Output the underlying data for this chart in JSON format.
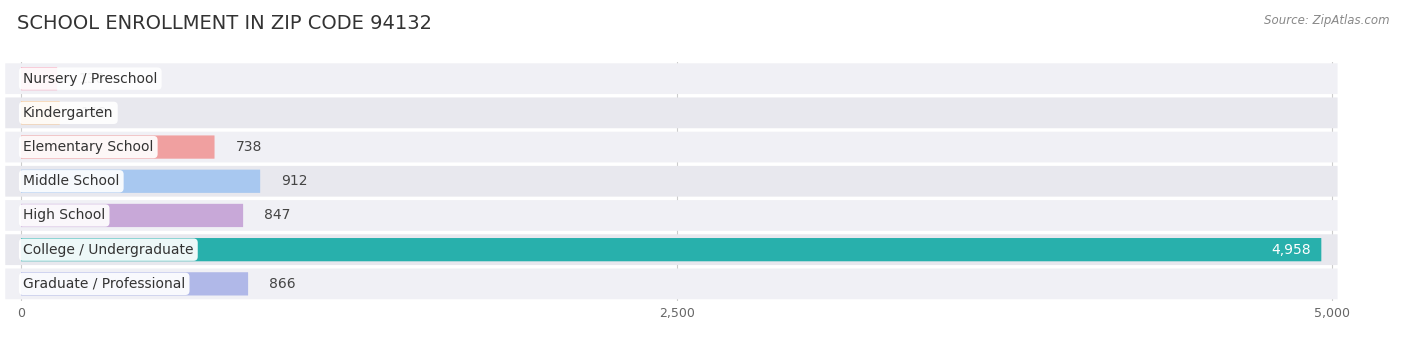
{
  "title": "SCHOOL ENROLLMENT IN ZIP CODE 94132",
  "source": "Source: ZipAtlas.com",
  "categories": [
    "Nursery / Preschool",
    "Kindergarten",
    "Elementary School",
    "Middle School",
    "High School",
    "College / Undergraduate",
    "Graduate / Professional"
  ],
  "values": [
    138,
    148,
    738,
    912,
    847,
    4958,
    866
  ],
  "bar_colors": [
    "#f4a0b8",
    "#f9c890",
    "#f0a0a0",
    "#a8c8f0",
    "#c8a8d8",
    "#28b0ac",
    "#b0b8e8"
  ],
  "bar_bg_color": "#e8e8ee",
  "xlim_max": 5000,
  "xticks": [
    0,
    2500,
    5000
  ],
  "xtick_labels": [
    "0",
    "2,500",
    "5,000"
  ],
  "title_fontsize": 14,
  "label_fontsize": 10,
  "value_fontsize": 10,
  "background_color": "#ffffff",
  "bar_height": 0.68,
  "row_bg_colors": [
    "#f0f0f5",
    "#e8e8ee"
  ]
}
